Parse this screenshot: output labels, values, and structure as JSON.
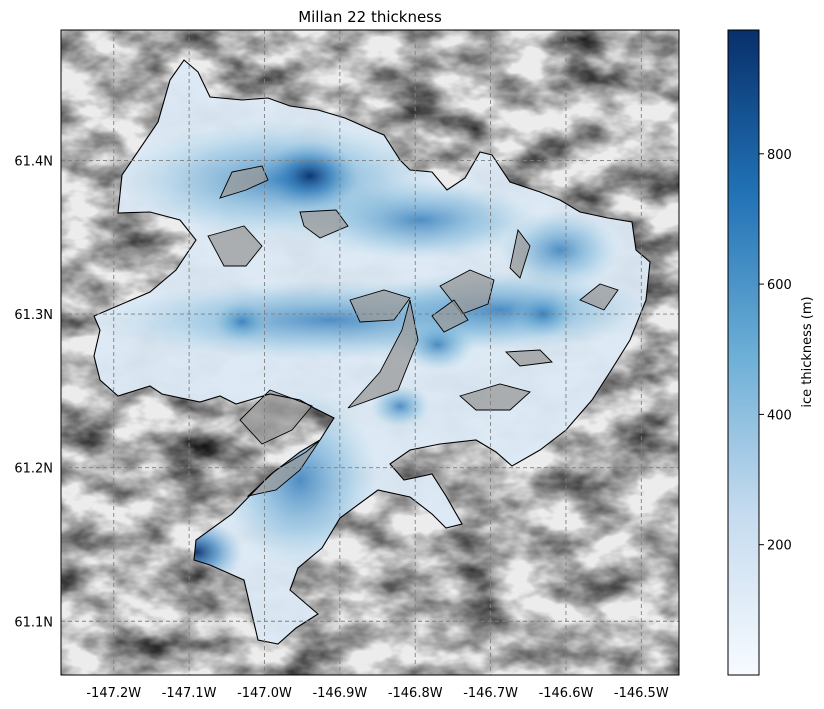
{
  "title": "Millan 22 thickness",
  "chart_data": {
    "type": "heatmap",
    "title": "Millan 22 thickness",
    "x_ticks": [
      "-147.2W",
      "-147.1W",
      "-147.0W",
      "-146.9W",
      "-146.8W",
      "-146.7W",
      "-146.6W",
      "-146.5W"
    ],
    "y_ticks": [
      "61.4N",
      "61.3N",
      "61.2N",
      "61.1N"
    ],
    "x_tick_values": [
      -147.2,
      -147.1,
      -147.0,
      -146.9,
      -146.8,
      -146.7,
      -146.6,
      -146.5
    ],
    "y_tick_values": [
      61.4,
      61.3,
      61.2,
      61.1
    ],
    "xlim": [
      -147.27,
      -146.45
    ],
    "ylim": [
      61.065,
      61.485
    ],
    "grid": true,
    "colorbar": {
      "label": "ice thickness (m)",
      "ticks": [
        "200",
        "400",
        "600",
        "800"
      ],
      "tick_values": [
        200,
        400,
        600,
        800
      ],
      "range": [
        0,
        990
      ],
      "colormap": "Blues",
      "colors": [
        "#f7fbff",
        "#c6dbef",
        "#6baed6",
        "#2171b5",
        "#08306b"
      ]
    },
    "thickness_hotspots": [
      {
        "lon": -146.94,
        "lat": 61.39,
        "value": 980
      },
      {
        "lon": -146.77,
        "lat": 61.28,
        "value": 620
      },
      {
        "lon": -146.63,
        "lat": 61.3,
        "value": 560
      },
      {
        "lon": -147.03,
        "lat": 61.295,
        "value": 450
      },
      {
        "lon": -146.82,
        "lat": 61.24,
        "value": 450
      },
      {
        "lon": -147.09,
        "lat": 61.145,
        "value": 900
      }
    ]
  }
}
